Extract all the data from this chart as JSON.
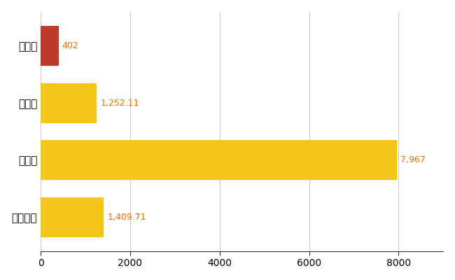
{
  "categories": [
    "邑楽町",
    "県平均",
    "県最大",
    "全国平均"
  ],
  "values": [
    402,
    1252.11,
    7967,
    1409.71
  ],
  "labels": [
    "402",
    "1,252.11",
    "7,967",
    "1,409.71"
  ],
  "colors": [
    "#c0392b",
    "#f5c518",
    "#f5c518",
    "#f5c518"
  ],
  "xlim": [
    0,
    9000
  ],
  "xticks": [
    0,
    2000,
    4000,
    6000,
    8000
  ],
  "xtick_labels": [
    "0",
    "2000",
    "4000",
    "6000",
    "8000"
  ],
  "background_color": "#ffffff",
  "grid_color": "#cccccc",
  "bar_height": 0.7,
  "label_fontsize": 9,
  "tick_fontsize": 10,
  "ytick_fontsize": 11,
  "label_color": "#e87000"
}
